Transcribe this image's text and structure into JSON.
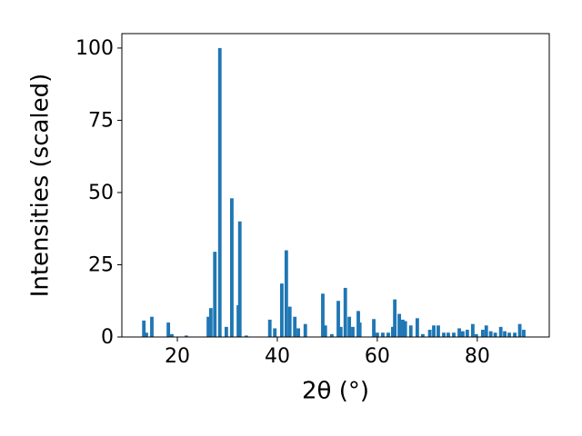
{
  "chart_data": {
    "type": "bar",
    "x_label": "2θ (°)",
    "y_label": "Intensities (scaled)",
    "color": "#1f77b4",
    "bar_width": 0.7,
    "x": [
      13.3,
      13.8,
      14.9,
      18.2,
      18.9,
      21.8,
      26.2,
      26.7,
      27.5,
      28.5,
      29.8,
      30.9,
      32.2,
      32.5,
      33.8,
      38.5,
      39.5,
      40.9,
      41.8,
      42.5,
      43.5,
      44.2,
      45.6,
      49.1,
      49.6,
      50.9,
      52.2,
      52.7,
      53.6,
      54.4,
      55.1,
      56.2,
      56.5,
      59.3,
      60.0,
      61.1,
      62.2,
      63.1,
      63.5,
      64.4,
      65.1,
      65.6,
      66.7,
      68.0,
      69.1,
      70.5,
      71.3,
      72.2,
      73.3,
      74.2,
      75.3,
      76.4,
      77.1,
      78.0,
      79.1,
      79.8,
      81.1,
      81.8,
      82.7,
      83.6,
      84.7,
      85.5,
      86.4,
      87.5,
      88.5,
      89.3
    ],
    "values": [
      5.7,
      1.5,
      7,
      5,
      1,
      0.5,
      7,
      10,
      29.5,
      100,
      3.5,
      48,
      11,
      40,
      0.5,
      6,
      3,
      18.5,
      30,
      10.5,
      7,
      3,
      4.5,
      15,
      4,
      1,
      12.5,
      3.5,
      17,
      7,
      3.5,
      9,
      5,
      6.2,
      1.5,
      1.5,
      1.5,
      3.5,
      13,
      8,
      6,
      5.5,
      4,
      6.5,
      1,
      2.5,
      4,
      4,
      1.5,
      1.5,
      1.5,
      3,
      2,
      2.5,
      4.5,
      1,
      2.5,
      4,
      2,
      1.5,
      3.5,
      2,
      1.5,
      1.5,
      4.5,
      2.5
    ],
    "xlim": [
      8.9,
      94.4
    ],
    "ylim": [
      0,
      105
    ],
    "xticks": [
      20,
      40,
      60,
      80
    ],
    "yticks": [
      0,
      25,
      50,
      75,
      100
    ]
  }
}
